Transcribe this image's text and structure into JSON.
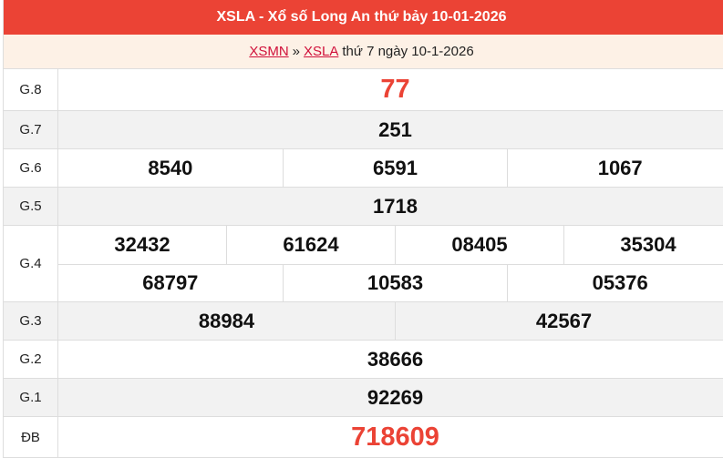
{
  "header": {
    "title": "XSLA - Xổ số Long An thứ bảy 10-01-2026"
  },
  "breadcrumb": {
    "link1": "XSMN",
    "sep": "»",
    "link2": "XSLA",
    "rest": "thứ 7 ngày 10-1-2026"
  },
  "colors": {
    "accent": "#eb4335",
    "subheader_bg": "#fdf1e6"
  },
  "prizes": [
    {
      "label": "G.8",
      "lines": [
        [
          "77"
        ]
      ]
    },
    {
      "label": "G.7",
      "lines": [
        [
          "251"
        ]
      ]
    },
    {
      "label": "G.6",
      "lines": [
        [
          "8540",
          "6591",
          "1067"
        ]
      ]
    },
    {
      "label": "G.5",
      "lines": [
        [
          "1718"
        ]
      ]
    },
    {
      "label": "G.4",
      "lines": [
        [
          "32432",
          "61624",
          "08405",
          "35304"
        ],
        [
          "68797",
          "10583",
          "05376"
        ]
      ]
    },
    {
      "label": "G.3",
      "lines": [
        [
          "88984",
          "42567"
        ]
      ]
    },
    {
      "label": "G.2",
      "lines": [
        [
          "38666"
        ]
      ]
    },
    {
      "label": "G.1",
      "lines": [
        [
          "92269"
        ]
      ]
    },
    {
      "label": "ĐB",
      "lines": [
        [
          "718609"
        ]
      ]
    }
  ]
}
